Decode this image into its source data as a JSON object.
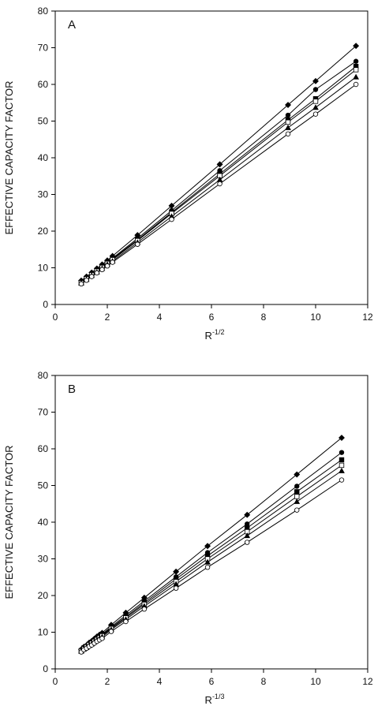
{
  "chart_data": [
    {
      "type": "line",
      "panel_label": "A",
      "xlabel_base": "R",
      "xlabel_exp": "-1/2",
      "ylabel": "EFFECTIVE CAPACITY FACTOR",
      "xlim": [
        0,
        12
      ],
      "ylim": [
        0,
        80
      ],
      "xticks": [
        0,
        2,
        4,
        6,
        8,
        10,
        12
      ],
      "yticks": [
        0,
        10,
        20,
        30,
        40,
        50,
        60,
        70,
        80
      ],
      "x": [
        1.0,
        1.2,
        1.4,
        1.6,
        1.8,
        2.0,
        2.2,
        3.16,
        4.47,
        6.32,
        8.94,
        10.0,
        11.55
      ],
      "series": [
        {
          "marker": "diamond-filled",
          "values": [
            6.5,
            7.6,
            8.7,
            9.8,
            10.9,
            12.0,
            13.2,
            18.9,
            26.9,
            38.2,
            54.4,
            60.9,
            70.5
          ]
        },
        {
          "marker": "circle-filled",
          "values": [
            6.1,
            7.3,
            8.3,
            9.3,
            10.4,
            11.5,
            12.6,
            18.0,
            25.6,
            36.5,
            51.6,
            58.6,
            66.3
          ]
        },
        {
          "marker": "square-filled",
          "values": [
            6.0,
            7.1,
            8.2,
            9.2,
            10.3,
            11.3,
            12.4,
            17.6,
            25.1,
            35.6,
            50.3,
            56.1,
            64.9
          ]
        },
        {
          "marker": "square-open",
          "values": [
            5.9,
            7.0,
            8.1,
            9.1,
            10.1,
            11.2,
            12.2,
            17.4,
            24.8,
            35.1,
            49.7,
            55.4,
            64.0
          ]
        },
        {
          "marker": "triangle-filled",
          "values": [
            5.8,
            6.8,
            7.9,
            8.8,
            9.8,
            10.9,
            11.8,
            16.9,
            24.0,
            34.0,
            48.2,
            53.7,
            62.0
          ]
        },
        {
          "marker": "circle-open",
          "values": [
            5.6,
            6.6,
            7.6,
            8.6,
            9.5,
            10.5,
            11.5,
            16.4,
            23.2,
            32.9,
            46.5,
            51.9,
            60.0
          ]
        }
      ]
    },
    {
      "type": "line",
      "panel_label": "B",
      "xlabel_base": "R",
      "xlabel_exp": "-1/3",
      "ylabel": "EFFECTIVE CAPACITY FACTOR",
      "xlim": [
        0,
        12
      ],
      "ylim": [
        0,
        80
      ],
      "xticks": [
        0,
        2,
        4,
        6,
        8,
        10,
        12
      ],
      "yticks": [
        0,
        10,
        20,
        30,
        40,
        50,
        60,
        70,
        80
      ],
      "x": [
        1.0,
        1.1,
        1.2,
        1.3,
        1.4,
        1.5,
        1.6,
        1.7,
        1.8,
        2.15,
        2.71,
        3.42,
        4.64,
        5.85,
        7.37,
        9.28,
        11.0
      ],
      "series": [
        {
          "marker": "diamond-filled",
          "values": [
            5.3,
            6.0,
            6.4,
            7.1,
            7.6,
            8.2,
            8.8,
            9.3,
            9.8,
            12.0,
            15.3,
            19.4,
            26.5,
            33.5,
            42.0,
            53.0,
            63.0
          ]
        },
        {
          "marker": "circle-filled",
          "values": [
            5.1,
            5.8,
            6.2,
            6.8,
            7.3,
            7.8,
            8.4,
            8.9,
            9.4,
            11.5,
            14.6,
            18.5,
            25.1,
            31.7,
            39.5,
            49.8,
            59.0
          ]
        },
        {
          "marker": "square-filled",
          "values": [
            5.0,
            5.7,
            6.1,
            6.7,
            7.2,
            7.7,
            8.2,
            8.7,
            9.2,
            11.2,
            14.2,
            18.0,
            24.5,
            30.8,
            38.4,
            48.3,
            57.0
          ]
        },
        {
          "marker": "square-open",
          "values": [
            4.9,
            5.5,
            6.0,
            6.6,
            7.0,
            7.5,
            8.0,
            8.5,
            9.0,
            11.0,
            13.9,
            17.6,
            23.8,
            30.0,
            37.4,
            47.0,
            55.5
          ]
        },
        {
          "marker": "triangle-filled",
          "values": [
            4.8,
            5.4,
            5.8,
            6.4,
            6.8,
            7.3,
            7.8,
            8.3,
            8.7,
            10.7,
            13.5,
            17.1,
            23.1,
            29.1,
            36.3,
            45.6,
            54.0
          ]
        },
        {
          "marker": "circle-open",
          "values": [
            4.6,
            5.2,
            5.6,
            6.1,
            6.5,
            7.0,
            7.5,
            7.9,
            8.3,
            10.2,
            12.9,
            16.3,
            22.0,
            27.7,
            34.5,
            43.3,
            51.5
          ]
        }
      ]
    }
  ]
}
